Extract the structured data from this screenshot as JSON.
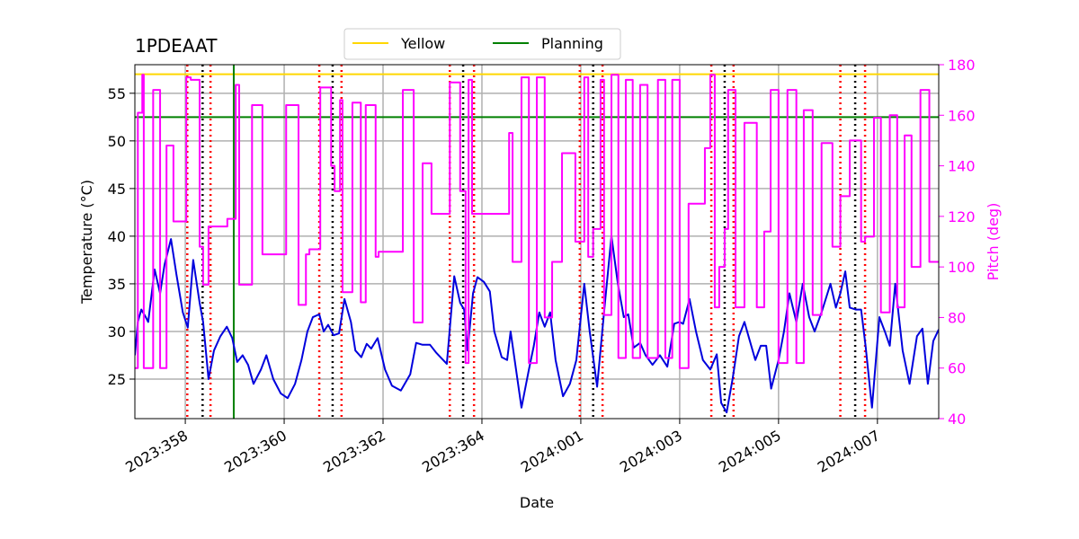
{
  "chart_data": {
    "type": "line",
    "title": "1PDEAAT",
    "xlabel": "Date",
    "ylabel": "Temperature (°C)",
    "y2label": "Pitch (deg)",
    "xlim": [
      356.98,
      373.24
    ],
    "xticks": [
      {
        "value": 358,
        "label": "2023:358"
      },
      {
        "value": 360,
        "label": "2023:360"
      },
      {
        "value": 362,
        "label": "2023:362"
      },
      {
        "value": 364,
        "label": "2023:364"
      },
      {
        "value": 366,
        "label": "2024:001"
      },
      {
        "value": 368,
        "label": "2024:003"
      },
      {
        "value": 370,
        "label": "2024:005"
      },
      {
        "value": 372,
        "label": "2024:007"
      }
    ],
    "ylim": [
      20.85,
      58.0
    ],
    "yticks": [
      25,
      30,
      35,
      40,
      45,
      50,
      55
    ],
    "y2lim": [
      40,
      180
    ],
    "y2ticks": [
      40,
      60,
      80,
      100,
      120,
      140,
      160,
      180
    ],
    "y2color": "#ff00ff",
    "grid": true,
    "legend": "top-center-outside",
    "hlines": [
      {
        "name": "Yellow",
        "value": 57,
        "color": "#ffd700"
      },
      {
        "name": "Planning",
        "value": 52.5,
        "color": "#008000"
      }
    ],
    "vlines": [
      {
        "color": "#008000",
        "style": "solid",
        "x": [
          358.98
        ]
      },
      {
        "color": "#ff0000",
        "style": "dotted",
        "x": [
          358.04,
          358.51,
          360.71,
          361.16,
          363.35,
          363.84,
          365.98,
          366.44,
          368.64,
          369.09,
          371.25,
          371.75
        ]
      },
      {
        "color": "#000000",
        "style": "dotted",
        "x": [
          358.35,
          360.98,
          363.62,
          366.25,
          368.91,
          371.55
        ]
      }
    ],
    "series": [
      {
        "color": "#0000dd",
        "axis": "y",
        "x": [
          356.98,
          357.04,
          357.11,
          357.2,
          357.25,
          357.38,
          357.49,
          357.58,
          357.71,
          357.82,
          357.95,
          358.05,
          358.16,
          358.29,
          358.36,
          358.47,
          358.58,
          358.71,
          358.84,
          358.95,
          359.05,
          359.16,
          359.27,
          359.38,
          359.53,
          359.64,
          359.78,
          359.93,
          360.07,
          360.22,
          360.35,
          360.47,
          360.58,
          360.71,
          360.8,
          360.89,
          361.0,
          361.11,
          361.22,
          361.35,
          361.44,
          361.56,
          361.67,
          361.76,
          361.89,
          362.04,
          362.18,
          362.36,
          362.55,
          362.67,
          362.8,
          362.95,
          363.07,
          363.29,
          363.44,
          363.56,
          363.64,
          363.71,
          363.82,
          363.91,
          364.04,
          364.16,
          364.25,
          364.4,
          364.51,
          364.58,
          364.69,
          364.8,
          364.95,
          365.05,
          365.16,
          365.27,
          365.38,
          365.49,
          365.64,
          365.78,
          365.91,
          366.07,
          366.18,
          366.33,
          366.47,
          366.62,
          366.75,
          366.87,
          366.96,
          367.07,
          367.2,
          367.31,
          367.45,
          367.6,
          367.75,
          367.89,
          368.0,
          368.07,
          368.2,
          368.33,
          368.47,
          368.62,
          368.75,
          368.84,
          368.95,
          369.07,
          369.2,
          369.31,
          369.42,
          369.53,
          369.64,
          369.75,
          369.85,
          370.0,
          370.11,
          370.22,
          370.36,
          370.49,
          370.62,
          370.73,
          370.87,
          371.05,
          371.16,
          371.25,
          371.35,
          371.44,
          371.56,
          371.67,
          371.76,
          371.89,
          372.04,
          372.15,
          372.25,
          372.36,
          372.51,
          372.65,
          372.8,
          372.91,
          373.02,
          373.13,
          373.24
        ],
        "values": [
          27.5,
          31,
          32.3,
          31.5,
          31,
          36.5,
          34,
          37,
          39.7,
          36,
          32,
          30.4,
          37.5,
          33,
          31,
          25,
          28,
          29.5,
          30.5,
          29.3,
          26.8,
          27.5,
          26.5,
          24.5,
          26,
          27.5,
          25,
          23.5,
          23,
          24.5,
          27,
          30,
          31.5,
          31.8,
          30,
          30.7,
          29.6,
          29.8,
          33.4,
          31,
          28,
          27.3,
          28.7,
          28.2,
          29.3,
          26,
          24.3,
          23.8,
          25.5,
          28.8,
          28.6,
          28.6,
          27.8,
          26.6,
          35.8,
          33,
          32.3,
          28,
          34,
          35.7,
          35.2,
          34.2,
          30,
          27.3,
          27,
          30,
          26,
          22,
          26,
          28.5,
          32,
          30.5,
          32,
          27,
          23.2,
          24.5,
          27,
          35,
          30,
          24.2,
          32,
          40,
          35,
          31.5,
          31.8,
          28.3,
          28.8,
          27.5,
          26.5,
          27.5,
          26.3,
          30.8,
          31,
          30.8,
          33.4,
          30,
          27,
          26,
          27.6,
          22.5,
          21.5,
          25,
          29.5,
          31,
          29,
          27,
          28.5,
          28.5,
          24,
          27,
          30,
          34,
          31,
          35,
          31.5,
          30,
          32,
          35,
          32.5,
          34,
          36.3,
          32.5,
          32.3,
          32.3,
          28.5,
          22,
          31.5,
          30,
          28.5,
          35,
          28,
          24.5,
          29.5,
          30.3,
          24.5,
          29,
          30.2
        ]
      },
      {
        "color": "#ff00ff",
        "axis": "y2",
        "step": "post",
        "x": [
          356.98,
          357.04,
          357.13,
          357.16,
          357.35,
          357.49,
          357.62,
          357.76,
          358.02,
          358.11,
          358.29,
          358.36,
          358.47,
          358.85,
          359.02,
          359.09,
          359.35,
          359.56,
          360.04,
          360.29,
          360.44,
          360.51,
          360.73,
          360.95,
          361.02,
          361.13,
          361.18,
          361.38,
          361.55,
          361.65,
          361.85,
          361.91,
          362.4,
          362.62,
          362.8,
          362.98,
          363.35,
          363.56,
          363.67,
          363.73,
          363.8,
          364.55,
          364.62,
          364.8,
          364.95,
          365.11,
          365.27,
          365.42,
          365.62,
          365.89,
          366.07,
          366.15,
          366.25,
          366.4,
          366.47,
          366.62,
          366.76,
          366.91,
          367.05,
          367.2,
          367.35,
          367.56,
          367.71,
          367.85,
          368.0,
          368.18,
          368.51,
          368.62,
          368.71,
          368.8,
          368.91,
          368.98,
          369.13,
          369.31,
          369.56,
          369.71,
          369.84,
          370.0,
          370.18,
          370.36,
          370.51,
          370.69,
          370.87,
          371.09,
          371.25,
          371.44,
          371.67,
          371.75,
          371.93,
          372.07,
          372.25,
          372.4,
          372.55,
          372.69,
          372.87,
          373.05,
          373.24
        ],
        "values": [
          60,
          161,
          176,
          60,
          170,
          60,
          148,
          118,
          175,
          174,
          108,
          93,
          116,
          119,
          172,
          93,
          164,
          105,
          164,
          85,
          105,
          107,
          171,
          140,
          130,
          166,
          90,
          165,
          86,
          164,
          104,
          106,
          170,
          78,
          141,
          121,
          173,
          130,
          62,
          174,
          121,
          153,
          102,
          175,
          62,
          175,
          80,
          102,
          145,
          110,
          175,
          104,
          115,
          174,
          81,
          176,
          64,
          174,
          64,
          172,
          64,
          174,
          64,
          174,
          60,
          125,
          147,
          176,
          84,
          100,
          115,
          170,
          84,
          157,
          84,
          114,
          170,
          62,
          170,
          62,
          162,
          81,
          149,
          108,
          128,
          150,
          110,
          112,
          159,
          82,
          160,
          84,
          152,
          100,
          170,
          102,
          102
        ]
      }
    ]
  }
}
